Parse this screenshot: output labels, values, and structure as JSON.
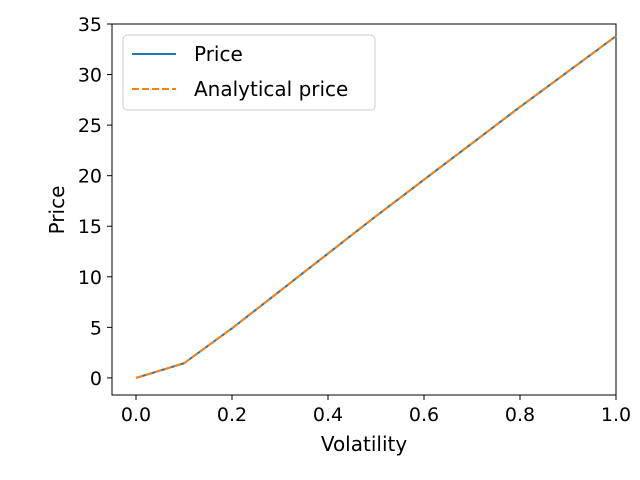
{
  "chart_data": {
    "type": "line",
    "title": "",
    "xlabel": "Volatility",
    "ylabel": "Price",
    "xlim": [
      -0.05,
      1.0
    ],
    "ylim": [
      -1.69,
      35.0
    ],
    "xticks": [
      0.0,
      0.2,
      0.4,
      0.6,
      0.8,
      1.0
    ],
    "xtick_labels": [
      "0.0",
      "0.2",
      "0.4",
      "0.6",
      "0.8",
      "1.0"
    ],
    "yticks": [
      0,
      5,
      10,
      15,
      20,
      25,
      30,
      35
    ],
    "ytick_labels": [
      "0",
      "5",
      "10",
      "15",
      "20",
      "25",
      "30",
      "35"
    ],
    "grid": false,
    "legend_position": "top-left",
    "x": [
      0.0,
      0.1,
      0.2,
      0.3,
      0.4,
      0.5,
      0.6,
      0.7,
      0.8,
      0.9,
      1.0
    ],
    "series": [
      {
        "name": "Price",
        "style": "solid",
        "color": "#1f77b4",
        "values": [
          0.0,
          1.45,
          4.9,
          8.6,
          12.3,
          16.0,
          19.6,
          23.2,
          26.8,
          30.3,
          33.8
        ]
      },
      {
        "name": "Analytical price",
        "style": "dashed",
        "color": "#ff7f0e",
        "values": [
          0.0,
          1.45,
          4.9,
          8.6,
          12.3,
          16.0,
          19.6,
          23.2,
          26.8,
          30.3,
          33.8
        ]
      }
    ]
  }
}
